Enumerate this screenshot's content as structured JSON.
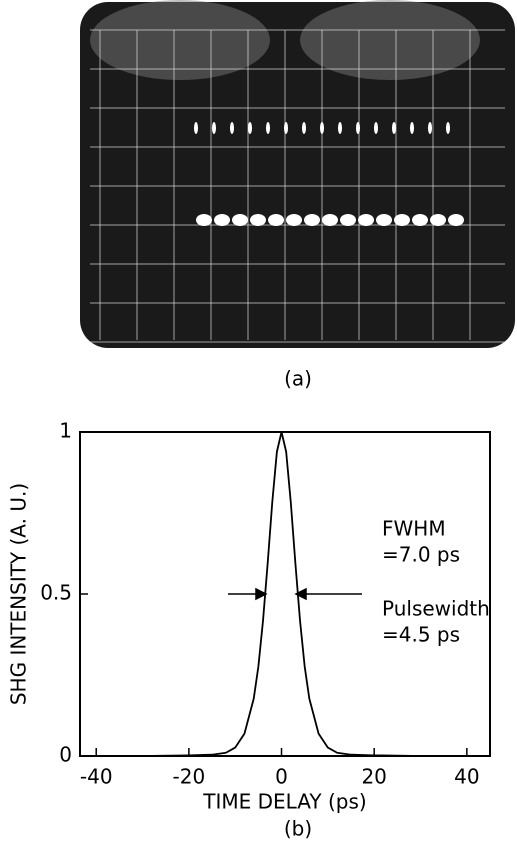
{
  "caption_a": "(a)",
  "chart_data": {
    "type": "line",
    "xlabel": "TIME DELAY (ps)",
    "ylabel": "SHG INTENSITY (A. U.)",
    "caption": "(b)",
    "x": [
      -43,
      -30,
      -20,
      -15,
      -12,
      -10,
      -8,
      -6,
      -5,
      -4,
      -3,
      -2,
      -1,
      0,
      1,
      2,
      3,
      4,
      5,
      6,
      8,
      10,
      12,
      15,
      20,
      30,
      44
    ],
    "series": [
      {
        "color": "#000000",
        "values": [
          0,
          0,
          0.002,
          0.004,
          0.01,
          0.026,
          0.069,
          0.177,
          0.276,
          0.417,
          0.593,
          0.783,
          0.939,
          1,
          0.939,
          0.783,
          0.593,
          0.417,
          0.276,
          0.177,
          0.069,
          0.026,
          0.01,
          0.004,
          0.002,
          0,
          0
        ]
      }
    ],
    "xlim": [
      -43.5,
      45
    ],
    "ylim": [
      0,
      1
    ],
    "xticks": [
      -40,
      -20,
      0,
      20,
      40
    ],
    "yticks": [
      0,
      0.5,
      1
    ],
    "annotations": [
      "FWHM",
      "=7.0 ps",
      "Pulsewidth",
      "=4.5 ps"
    ]
  }
}
